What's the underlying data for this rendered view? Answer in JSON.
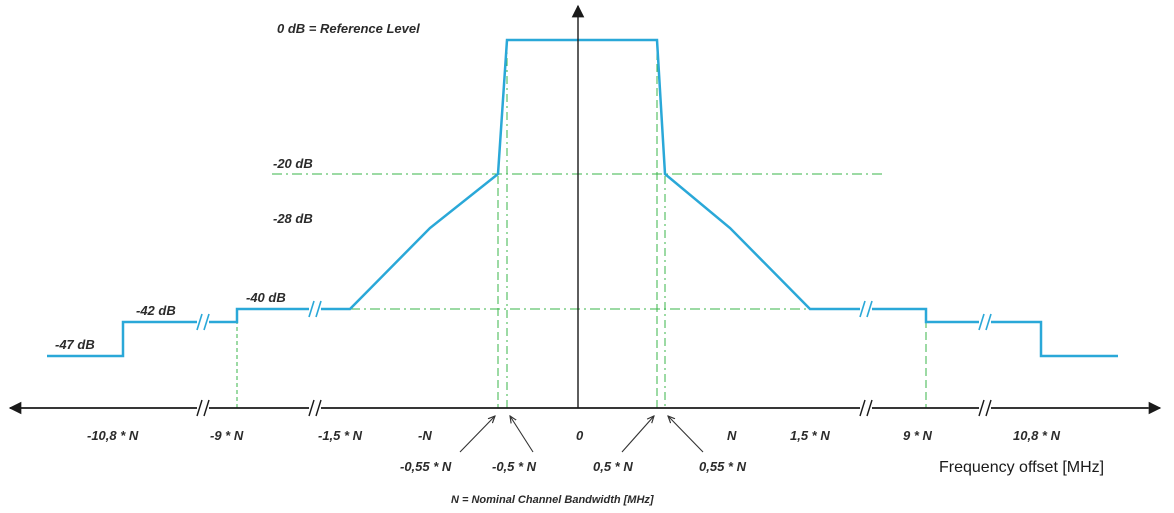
{
  "colors": {
    "mask": "#2aa8d8",
    "guide": "#39b54a",
    "axis": "#1a1a1a",
    "text": "#2b2b2b"
  },
  "labels": {
    "reference": "0 dB = Reference Level",
    "db_minus20": "-20 dB",
    "db_minus28": "-28 dB",
    "db_minus40": "-40 dB",
    "db_minus42": "-42 dB",
    "db_minus47": "-47 dB",
    "x_axis_title": "Frequency offset [MHz]",
    "note": "N = Nominal Channel Bandwidth [MHz]"
  },
  "x_ticks": {
    "neg_10_8N": "-10,8 * N",
    "neg_9N": "-9 * N",
    "neg_1_5N": "-1,5 * N",
    "neg_N": "-N",
    "zero": "0",
    "pos_N": "N",
    "pos_1_5N": "1,5 * N",
    "pos_9N": "9 * N",
    "pos_10_8N": "10,8 * N"
  },
  "x_ticks_inner": {
    "neg_0_55N": "-0,55 * N",
    "neg_0_5N": "-0,5 * N",
    "pos_0_5N": "0,5 * N",
    "pos_0_55N": "0,55 * N"
  }
}
